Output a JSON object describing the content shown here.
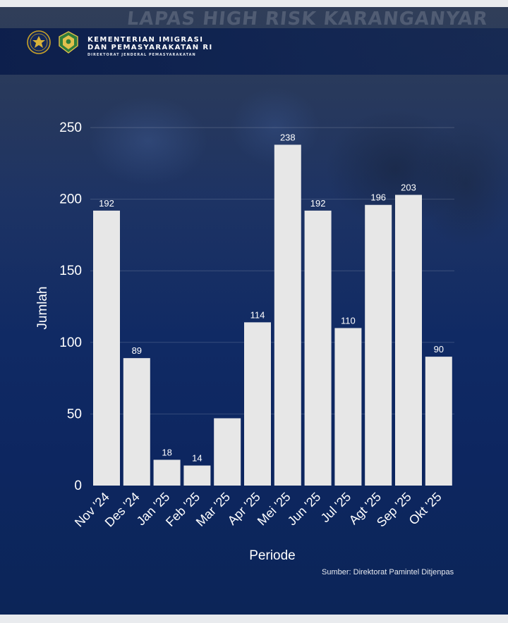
{
  "header": {
    "wall_text": "LAPAS HIGH RISK KARANGANYAR",
    "org_line1": "KEMENTERIAN IMIGRASI",
    "org_line2": "DAN PEMASYARAKATAN RI",
    "org_line3": "DIREKTORAT JENDERAL PEMASYARAKATAN"
  },
  "colors": {
    "background": "#0c2355",
    "bar": "#e7e7e7",
    "text": "#ffffff"
  },
  "chart_data": {
    "type": "bar",
    "categories": [
      "Nov '24",
      "Des '24",
      "Jan '25",
      "Feb '25",
      "Mar '25",
      "Apr '25",
      "Mei '25",
      "Jun '25",
      "Jul '25",
      "Agt '25",
      "Sep '25",
      "Okt '25"
    ],
    "values": [
      192,
      89,
      18,
      14,
      47,
      114,
      238,
      192,
      110,
      196,
      203,
      90
    ],
    "data_labels": [
      "192",
      "89",
      "18",
      "14",
      "",
      "114",
      "238",
      "192",
      "110",
      "196",
      "203",
      "90"
    ],
    "title": "",
    "xlabel": "Periode",
    "ylabel": "Jumlah",
    "ylim": [
      0,
      250
    ],
    "yticks": [
      0,
      50,
      100,
      150,
      200,
      250
    ],
    "grid": true,
    "legend": "none"
  },
  "footer": {
    "source": "Sumber: Direktorat Pamintel Ditjenpas"
  }
}
